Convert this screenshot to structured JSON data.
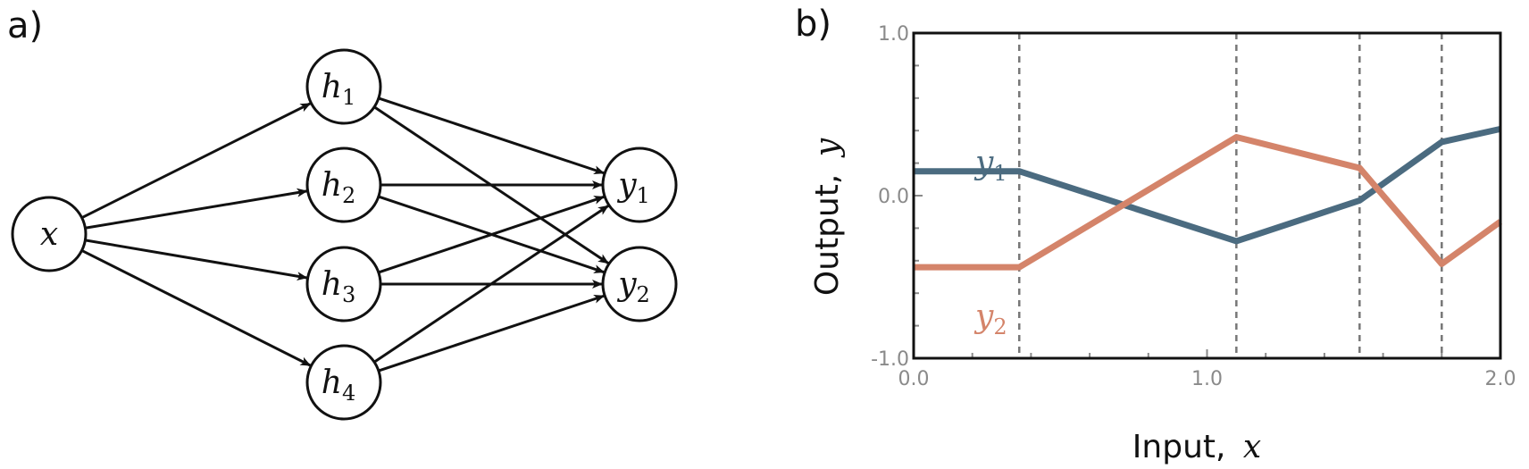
{
  "panel_a": {
    "label": "a)",
    "nodes": {
      "x": {
        "base": "x",
        "sub": ""
      },
      "h1": {
        "base": "h",
        "sub": "1"
      },
      "h2": {
        "base": "h",
        "sub": "2"
      },
      "h3": {
        "base": "h",
        "sub": "3"
      },
      "h4": {
        "base": "h",
        "sub": "4"
      },
      "y1": {
        "base": "y",
        "sub": "1"
      },
      "y2": {
        "base": "y",
        "sub": "2"
      }
    },
    "edges": [
      [
        "x",
        "h1"
      ],
      [
        "x",
        "h2"
      ],
      [
        "x",
        "h3"
      ],
      [
        "x",
        "h4"
      ],
      [
        "h1",
        "y1"
      ],
      [
        "h1",
        "y2"
      ],
      [
        "h2",
        "y1"
      ],
      [
        "h2",
        "y2"
      ],
      [
        "h3",
        "y1"
      ],
      [
        "h3",
        "y2"
      ],
      [
        "h4",
        "y1"
      ],
      [
        "h4",
        "y2"
      ]
    ]
  },
  "panel_b": {
    "label": "b)",
    "axes": {
      "xlabel": "Input,",
      "xlabel_var": "x",
      "ylabel": "Output,",
      "ylabel_var": "y",
      "x_tick_labels": [
        "0.0",
        "1.0",
        "2.0"
      ],
      "y_tick_labels": [
        "1.0",
        "0.0",
        "-1.0"
      ]
    },
    "series_labels": {
      "y1": {
        "base": "y",
        "sub": "1"
      },
      "y2": {
        "base": "y",
        "sub": "2"
      }
    }
  },
  "colors": {
    "y1": "#4b6b80",
    "y2": "#d4846a",
    "tick": "#8a8a8a",
    "dashed": "#777777",
    "ink": "#111111"
  },
  "chart_data": {
    "type": "line",
    "xlim": [
      0,
      2
    ],
    "ylim": [
      -1,
      1
    ],
    "grid": false,
    "vlines": [
      0.36,
      1.1,
      1.52,
      1.8
    ],
    "series": [
      {
        "name": "y1",
        "x": [
          0,
          0.36,
          1.1,
          1.52,
          1.8,
          2.0
        ],
        "y": [
          0.15,
          0.15,
          -0.28,
          -0.03,
          0.33,
          0.41
        ]
      },
      {
        "name": "y2",
        "x": [
          0,
          0.36,
          1.1,
          1.52,
          1.8,
          2.0
        ],
        "y": [
          -0.44,
          -0.44,
          0.36,
          0.17,
          -0.42,
          -0.16
        ]
      }
    ]
  }
}
